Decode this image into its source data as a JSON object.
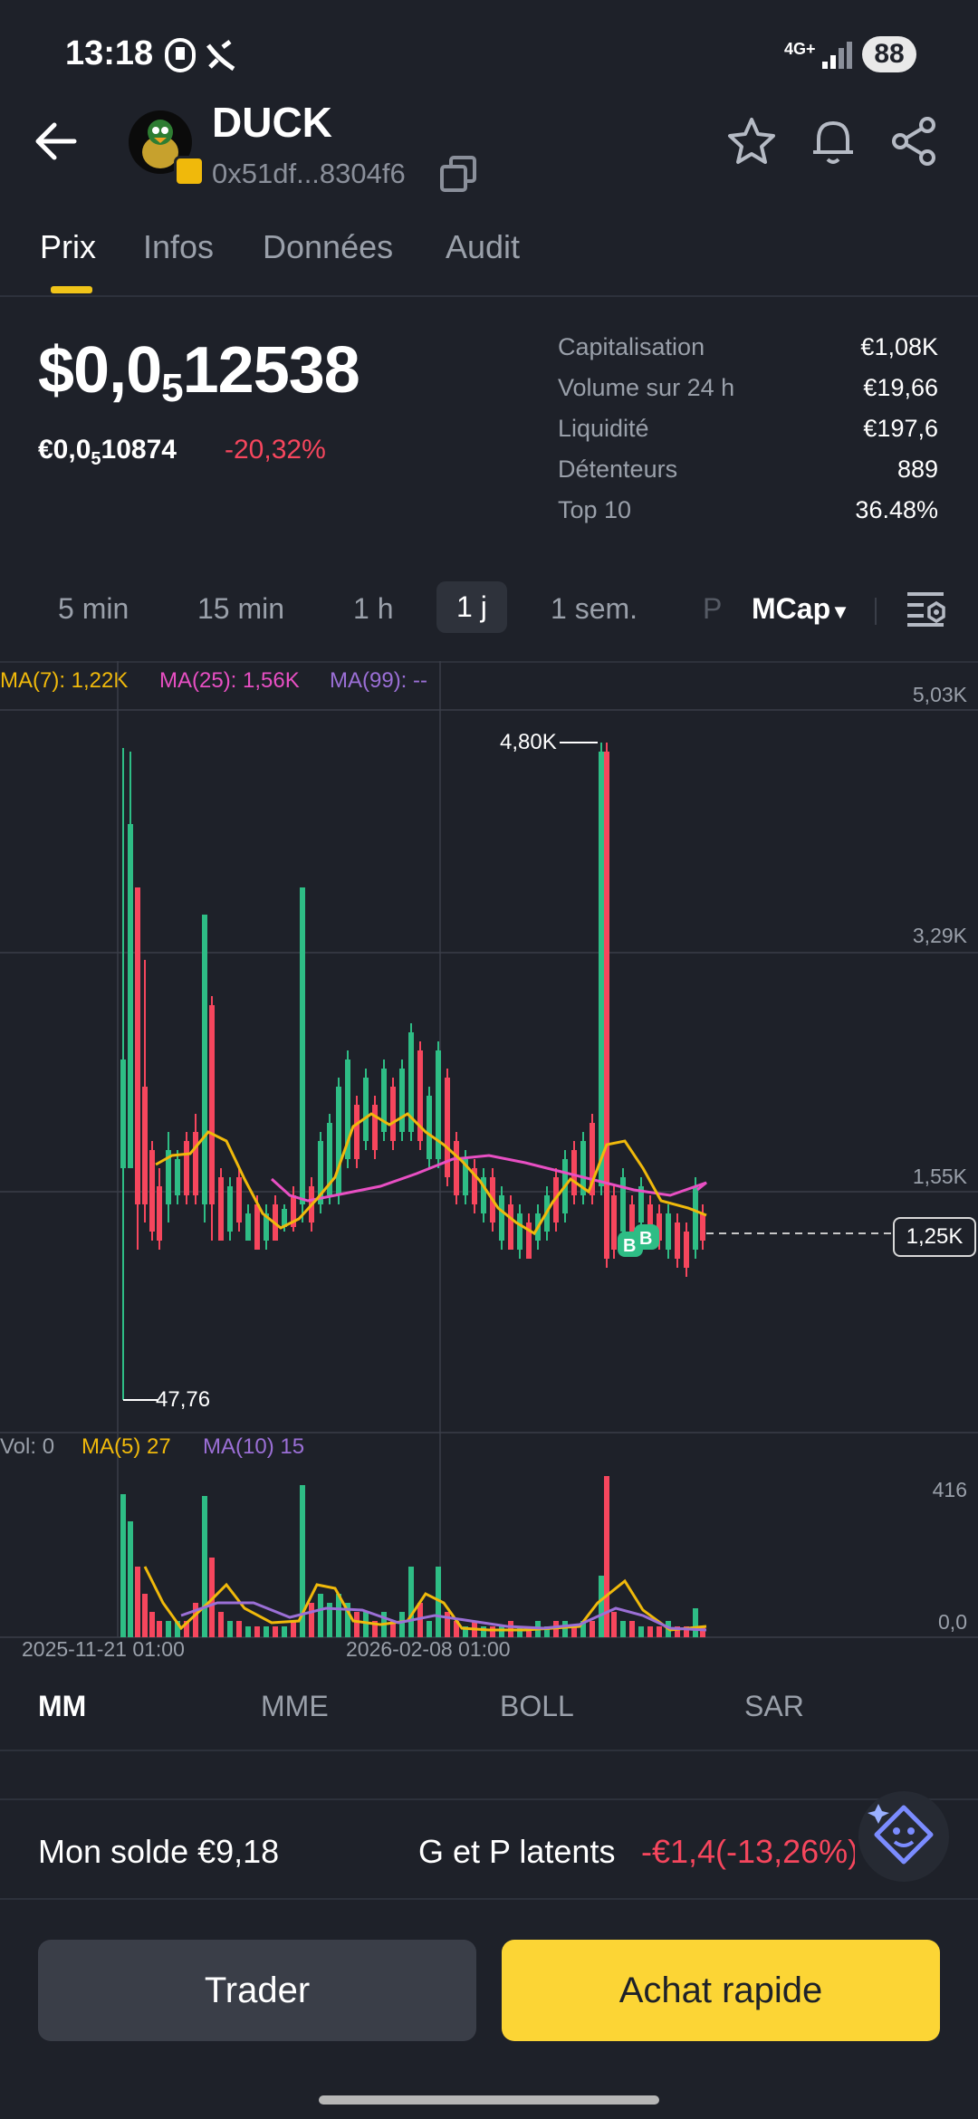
{
  "status_bar": {
    "time": "13:18",
    "network": "4G+",
    "battery": "88"
  },
  "header": {
    "title": "DUCK",
    "address": "0x51df...8304f6"
  },
  "tabs": [
    {
      "label": "Prix",
      "active": true
    },
    {
      "label": "Infos",
      "active": false
    },
    {
      "label": "Données",
      "active": false
    },
    {
      "label": "Audit",
      "active": false
    }
  ],
  "price": {
    "usd_prefix": "$0,0",
    "usd_sub": "5",
    "usd_suffix": "12538",
    "eur_prefix": "€0,0",
    "eur_sub": "5",
    "eur_suffix": "10874",
    "change": "-20,32%"
  },
  "stats": [
    {
      "label": "Capitalisation",
      "value": "€1,08K"
    },
    {
      "label": "Volume sur 24 h",
      "value": "€19,66"
    },
    {
      "label": "Liquidité",
      "value": "€197,6"
    },
    {
      "label": "Détenteurs",
      "value": "889"
    },
    {
      "label": "Top 10",
      "value": "36.48%"
    }
  ],
  "intervals": [
    {
      "label": "5 min",
      "active": false
    },
    {
      "label": "15 min",
      "active": false
    },
    {
      "label": "1 h",
      "active": false
    },
    {
      "label": "1 j",
      "active": true
    },
    {
      "label": "1 sem.",
      "active": false
    },
    {
      "label": "P",
      "active": false
    }
  ],
  "chart_mode": "MCap",
  "chart": {
    "ma_legend": [
      {
        "text": "MA(7): 1,22K",
        "color": "#f0b90b"
      },
      {
        "text": "MA(25): 1,56K",
        "color": "#e84fc3"
      },
      {
        "text": "MA(99): --",
        "color": "#9b6fd6"
      }
    ],
    "y_labels": [
      "5,03K",
      "3,29K",
      "1,55K"
    ],
    "current_value": "1,25K",
    "high_label": "4,80K",
    "low_label": "47,76",
    "vol_legend": [
      {
        "text": "Vol: 0",
        "color": "#9aa0aa"
      },
      {
        "text": "MA(5) 27",
        "color": "#f0b90b"
      },
      {
        "text": "MA(10) 15",
        "color": "#9b6fd6"
      }
    ],
    "vol_y_labels": [
      "416",
      "0,0"
    ],
    "dates": [
      "2025-11-21 01:00",
      "2026-02-08 01:00"
    ]
  },
  "indicator_tabs": [
    {
      "label": "MM",
      "active": true
    },
    {
      "label": "MME",
      "active": false
    },
    {
      "label": "BOLL",
      "active": false
    },
    {
      "label": "SAR",
      "active": false
    }
  ],
  "balance": {
    "label": "Mon solde €9,18"
  },
  "pnl": {
    "label": "G et P latents",
    "value": "-€1,4(-13,26%)"
  },
  "buttons": {
    "trade": "Trader",
    "quick_buy": "Achat rapide"
  },
  "colors": {
    "up": "#2ebd85",
    "down": "#f6465d",
    "accent": "#fcd535"
  },
  "chart_data": {
    "type": "candlestick",
    "x": [
      "2025-11-21 01:00",
      "2026-02-08 01:00"
    ],
    "ylabel": "MCap",
    "y_ticks": [
      1550,
      3290,
      5030
    ],
    "high": 4800,
    "low": 47.76,
    "last": 1250,
    "ma": [
      {
        "name": "MA(7)",
        "value": 1220
      },
      {
        "name": "MA(25)",
        "value": 1560
      }
    ]
  }
}
